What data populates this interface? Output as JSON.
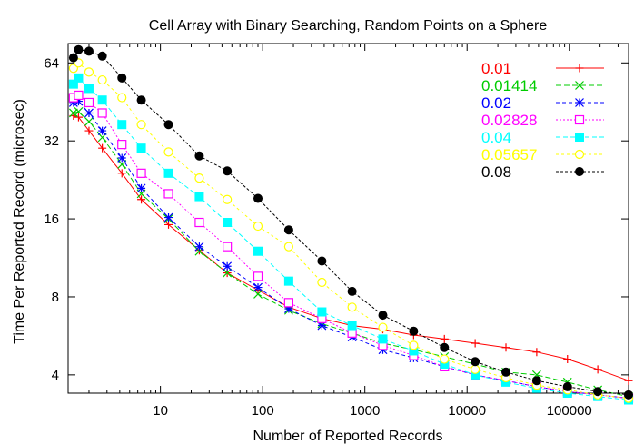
{
  "chart_data": {
    "type": "line",
    "title": "Cell Array with Binary Searching, Random Points on a Sphere",
    "xlabel": "Number of Reported Records",
    "ylabel": "Time Per Reported Record (microsec)",
    "x_scale": "log",
    "y_scale": "log",
    "xlim": [
      1.25,
      380000
    ],
    "ylim": [
      3.4,
      76
    ],
    "x_ticks": [
      10,
      100,
      1000,
      10000,
      100000
    ],
    "x_tick_labels": [
      "10",
      "100",
      "1000",
      "10000",
      "100000"
    ],
    "y_ticks": [
      4,
      8,
      16,
      32,
      64
    ],
    "y_tick_labels": [
      "4",
      "8",
      "16",
      "32",
      "64"
    ],
    "grid": false,
    "legend_position": "top-right",
    "x": [
      1.41,
      1.58,
      2,
      2.7,
      4.2,
      6.5,
      12,
      24,
      45,
      90,
      180,
      380,
      750,
      1500,
      3000,
      6000,
      12000,
      24000,
      48000,
      96000,
      190000,
      380000
    ],
    "series": [
      {
        "name": "0.01",
        "color": "#ff0000",
        "marker": "plus",
        "values": [
          40,
          39.5,
          35,
          30,
          24,
          19,
          15.2,
          12.1,
          9.9,
          8.5,
          7.3,
          6.6,
          6.2,
          6.0,
          5.7,
          5.5,
          5.3,
          5.1,
          4.9,
          4.6,
          4.2,
          3.8
        ]
      },
      {
        "name": "0.01414",
        "color": "#00cc00",
        "marker": "x",
        "values": [
          41,
          41.5,
          38,
          33,
          26,
          20,
          16,
          12,
          9.9,
          8.2,
          7.1,
          6.3,
          5.8,
          5.3,
          5.0,
          4.7,
          4.4,
          4.1,
          4.0,
          3.75,
          3.5,
          3.3
        ]
      },
      {
        "name": "0.02",
        "color": "#0000ff",
        "marker": "star",
        "values": [
          45,
          45.5,
          41,
          35,
          27.5,
          21,
          16.2,
          12.5,
          10.5,
          8.7,
          7.2,
          6.2,
          5.6,
          5.0,
          4.65,
          4.3,
          4.0,
          3.8,
          3.6,
          3.45,
          3.35,
          3.25
        ]
      },
      {
        "name": "0.02828",
        "color": "#ff00ff",
        "marker": "square",
        "values": [
          47,
          48,
          45,
          41,
          31,
          24,
          20,
          15.5,
          12.5,
          9.6,
          7.6,
          6.6,
          5.8,
          5.2,
          4.75,
          4.3,
          4.0,
          3.8,
          3.6,
          3.45,
          3.35,
          3.25
        ]
      },
      {
        "name": "0.04",
        "color": "#00ffff",
        "marker": "filled-square",
        "values": [
          53,
          56,
          51,
          46,
          37,
          30,
          24,
          19.5,
          15.5,
          12,
          9.2,
          7.0,
          6.2,
          5.5,
          4.95,
          4.4,
          4.0,
          3.75,
          3.55,
          3.4,
          3.3,
          3.2
        ]
      },
      {
        "name": "0.05657",
        "color": "#ffff00",
        "marker": "circle",
        "values": [
          61,
          64,
          59,
          55,
          47,
          37,
          29,
          23,
          19,
          15,
          12.5,
          9.1,
          7.3,
          6.1,
          5.2,
          4.6,
          4.2,
          3.9,
          3.65,
          3.5,
          3.35,
          3.25
        ]
      },
      {
        "name": "0.08",
        "color": "#000000",
        "marker": "filled-circle",
        "values": [
          67,
          72,
          71,
          68,
          56,
          46,
          37,
          28,
          24.5,
          19.2,
          14.5,
          11,
          8.4,
          6.8,
          5.9,
          5.1,
          4.5,
          4.1,
          3.8,
          3.6,
          3.45,
          3.35
        ]
      }
    ]
  }
}
